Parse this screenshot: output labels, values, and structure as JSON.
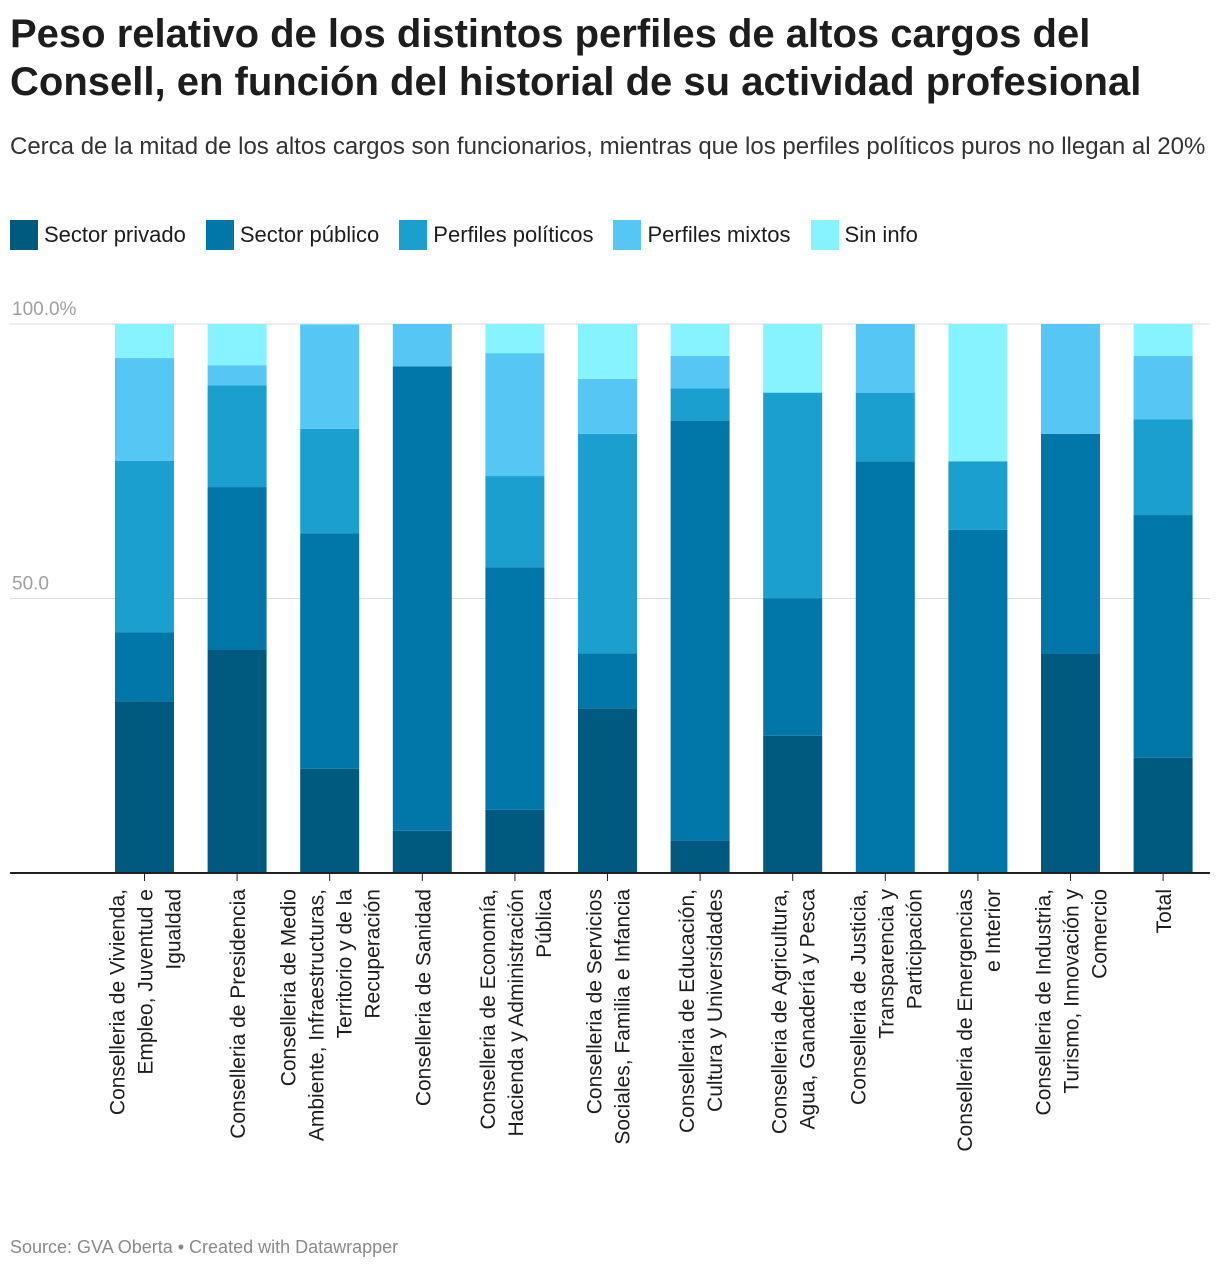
{
  "title": "Peso relativo de los distintos perfiles de altos cargos del Consell, en función del historial de su actividad profesional",
  "subtitle": "Cerca de la mitad de los altos cargos son funcionarios, mientras que los perfiles políticos puros no llegan al 20%",
  "source": "Source: GVA Oberta • Created with Datawrapper",
  "chart_data": {
    "type": "bar",
    "stacked": true,
    "ylim": [
      0,
      100
    ],
    "yticks": [
      "100.0%",
      "50.0"
    ],
    "grid": true,
    "legend_position": "top-left",
    "categories": [
      [
        "Conselleria de Vivienda,",
        "Empleo, Juventud e",
        "Igualdad"
      ],
      [
        "Conselleria de Presidencia"
      ],
      [
        "Conselleria de Medio",
        "Ambiente, Infraestructuras,",
        "Territorio y de la",
        "Recuperación"
      ],
      [
        "Conselleria de Sanidad"
      ],
      [
        "Conselleria de Economía,",
        "Hacienda y Administración",
        "Pública"
      ],
      [
        "Conselleria de Servicios",
        "Sociales, Familia e Infancia"
      ],
      [
        "Conselleria de Educación,",
        "Cultura y Universidades"
      ],
      [
        "Conselleria de Agricultura,",
        "Agua, Ganadería y Pesca"
      ],
      [
        "Conselleria de Justicia,",
        "Transparencia y",
        "Participación"
      ],
      [
        "Conselleria de Emergencias",
        "e Interior"
      ],
      [
        "Conselleria de Industria,",
        "Turismo, Innovación y",
        "Comercio"
      ],
      [
        "Total"
      ]
    ],
    "series": [
      {
        "name": "Sector privado",
        "color": "#005a80",
        "values": [
          31.3,
          40.7,
          19.0,
          7.7,
          11.5,
          30.0,
          5.9,
          25.0,
          0,
          0,
          40.0,
          21.0
        ]
      },
      {
        "name": "Sector público",
        "color": "#0077a8",
        "values": [
          12.5,
          29.6,
          42.9,
          84.6,
          44.2,
          10.0,
          76.5,
          25.0,
          75.0,
          62.5,
          40.0,
          44.2
        ]
      },
      {
        "name": "Perfiles políticos",
        "color": "#1a9fcf",
        "values": [
          31.3,
          18.5,
          19.0,
          0,
          16.6,
          40.0,
          5.9,
          37.5,
          12.5,
          12.5,
          0,
          17.4
        ]
      },
      {
        "name": "Perfiles mixtos",
        "color": "#56c7f5",
        "values": [
          18.7,
          3.7,
          19.0,
          7.7,
          22.4,
          10.0,
          5.9,
          0,
          12.5,
          0,
          20.0,
          11.6
        ]
      },
      {
        "name": "Sin info",
        "color": "#87f3ff",
        "values": [
          6.2,
          7.5,
          0.1,
          0,
          5.3,
          10.0,
          5.8,
          12.5,
          0,
          25.0,
          0,
          5.8
        ]
      }
    ]
  }
}
